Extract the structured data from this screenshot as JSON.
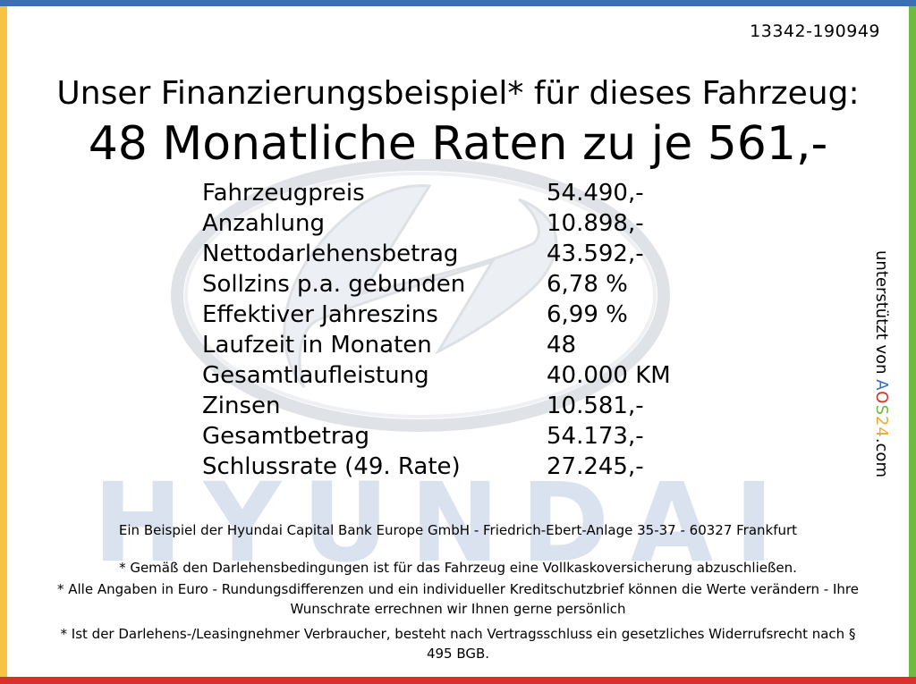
{
  "colors": {
    "border_top": "#3a6fb7",
    "border_right": "#6fba43",
    "border_bottom": "#d9302c",
    "border_left": "#f5c445",
    "watermark": "#d9e2ee"
  },
  "watermark": {
    "logo_icon": "hyundai-logo-icon",
    "brand_word": "HYUNDAI"
  },
  "ref_code": "13342-190949",
  "headline": "Unser Finanzierungsbeispiel* für dieses Fahrzeug:",
  "rate_line": "48 Monatliche Raten zu je 561,-",
  "financing": [
    {
      "label": "Fahrzeugpreis",
      "value": "54.490,-"
    },
    {
      "label": "Anzahlung",
      "value": "10.898,-"
    },
    {
      "label": "Nettodarlehensbetrag",
      "value": "43.592,-"
    },
    {
      "label": "Sollzins p.a. gebunden",
      "value": "6,78 %"
    },
    {
      "label": "Effektiver Jahreszins",
      "value": "6,99 %"
    },
    {
      "label": "Laufzeit in Monaten",
      "value": "48"
    },
    {
      "label": "Gesamtlaufleistung",
      "value": "40.000 KM"
    },
    {
      "label": "Zinsen",
      "value": "10.581,-"
    },
    {
      "label": "Gesamtbetrag",
      "value": "54.173,-"
    },
    {
      "label": "Schlussrate (49. Rate)",
      "value": "27.245,-"
    }
  ],
  "bank_line": "Ein Beispiel der Hyundai Capital Bank Europe GmbH - Friedrich-Ebert-Anlage 35-37 - 60327 Frankfurt",
  "footnotes": {
    "insurance": "* Gemäß den Darlehensbedingungen ist für das Fahrzeug eine Vollkaskoversicherung abzuschließen.",
    "currency": "* Alle Angaben in Euro - Rundungsdifferenzen und ein individueller Kreditschutzbrief können die Werte verändern - Ihre Wunschrate errechnen wir Ihnen gerne persönlich",
    "withdrawal": "* Ist der Darlehens-/Leasingnehmer Verbraucher, besteht nach Vertragsschluss ein gesetzliches Widerrufsrecht nach § 495 BGB."
  },
  "sponsor": {
    "prefix": "unterstützt von",
    "brand_a": "A",
    "brand_o": "O",
    "brand_s": "S",
    "brand_24": "24",
    "suffix": ".com"
  }
}
